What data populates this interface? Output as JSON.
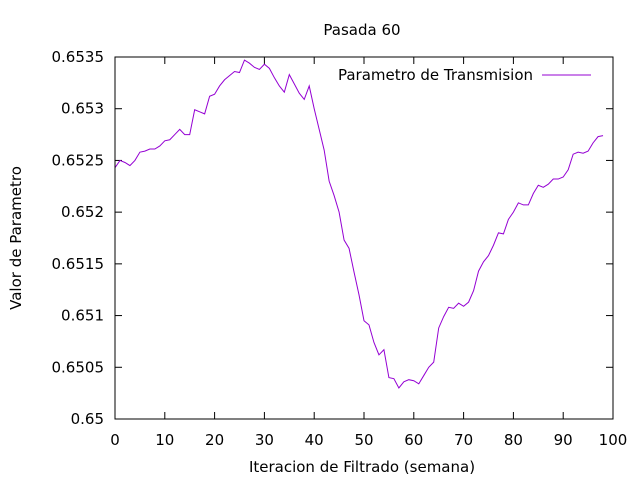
{
  "chart_data": {
    "type": "line",
    "title": "Pasada 60",
    "xlabel": "Iteracion de Filtrado (semana)",
    "ylabel": "Valor de Parametro",
    "xlim": [
      0,
      100
    ],
    "ylim": [
      0.65,
      0.6535
    ],
    "xticks": [
      0,
      10,
      20,
      30,
      40,
      50,
      60,
      70,
      80,
      90,
      100
    ],
    "xtick_labels": [
      "0",
      "10",
      "20",
      "30",
      "40",
      "50",
      "60",
      "70",
      "80",
      "90",
      "100"
    ],
    "yticks": [
      0.65,
      0.6505,
      0.651,
      0.6515,
      0.652,
      0.6525,
      0.653,
      0.6535
    ],
    "ytick_labels": [
      "0.65",
      "0.6505",
      "0.651",
      "0.6515",
      "0.652",
      "0.6525",
      "0.653",
      "0.6535"
    ],
    "grid": false,
    "legend_position": "top-right",
    "series": [
      {
        "name": "Parametro de Transmision",
        "color": "#9400d3",
        "x": [
          0,
          1,
          2,
          3,
          4,
          5,
          6,
          7,
          8,
          9,
          10,
          11,
          12,
          13,
          14,
          15,
          16,
          17,
          18,
          19,
          20,
          21,
          22,
          23,
          24,
          25,
          26,
          27,
          28,
          29,
          30,
          31,
          32,
          33,
          34,
          35,
          36,
          37,
          38,
          39,
          40,
          41,
          42,
          43,
          44,
          45,
          46,
          47,
          48,
          49,
          50,
          51,
          52,
          53,
          54,
          55,
          56,
          57,
          58,
          59,
          60,
          61,
          62,
          63,
          64,
          65,
          66,
          67,
          68,
          69,
          70,
          71,
          72,
          73,
          74,
          75,
          76,
          77,
          78,
          79,
          80,
          81,
          82,
          83,
          84,
          85,
          86,
          87,
          88,
          89,
          90,
          91,
          92,
          93,
          94,
          95,
          96,
          97,
          98
        ],
        "values": [
          0.65243,
          0.6525,
          0.65248,
          0.65245,
          0.6525,
          0.65258,
          0.65259,
          0.65261,
          0.65261,
          0.65264,
          0.65269,
          0.6527,
          0.65275,
          0.6528,
          0.65275,
          0.65275,
          0.65299,
          0.65297,
          0.65295,
          0.65312,
          0.65314,
          0.65322,
          0.65328,
          0.65332,
          0.65336,
          0.65335,
          0.65347,
          0.65344,
          0.6534,
          0.65338,
          0.65343,
          0.65339,
          0.6533,
          0.65322,
          0.65316,
          0.65333,
          0.65324,
          0.65315,
          0.65309,
          0.65322,
          0.653,
          0.6528,
          0.6526,
          0.6523,
          0.65216,
          0.652,
          0.65173,
          0.65165,
          0.65142,
          0.6512,
          0.65095,
          0.65091,
          0.65074,
          0.65062,
          0.65067,
          0.6504,
          0.65039,
          0.6503,
          0.65036,
          0.65038,
          0.65037,
          0.65034,
          0.65042,
          0.6505,
          0.65055,
          0.65088,
          0.65099,
          0.65108,
          0.65107,
          0.65112,
          0.65109,
          0.65113,
          0.65124,
          0.65143,
          0.65152,
          0.65158,
          0.65168,
          0.6518,
          0.65179,
          0.65193,
          0.652,
          0.65209,
          0.65207,
          0.65207,
          0.65218,
          0.65226,
          0.65224,
          0.65227,
          0.65232,
          0.65232,
          0.65234,
          0.65241,
          0.65256,
          0.65258,
          0.65257,
          0.65259,
          0.65267,
          0.65273,
          0.65274
        ]
      }
    ]
  }
}
